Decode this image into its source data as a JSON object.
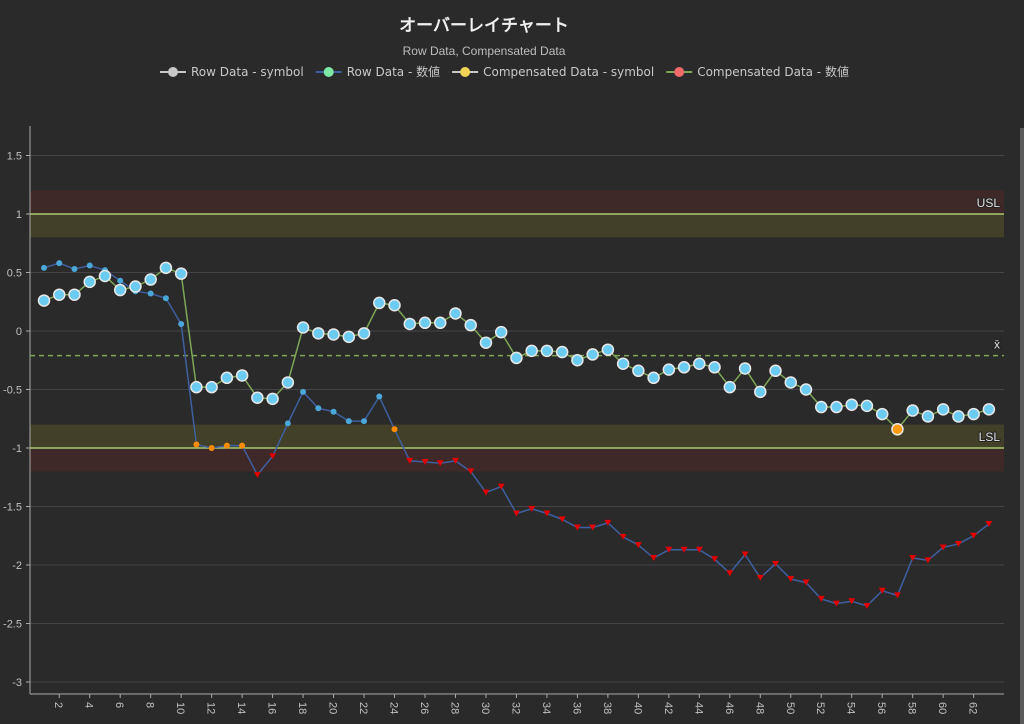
{
  "chart_data": {
    "type": "line",
    "title": "オーバーレイチャート",
    "subtitle": "Row Data, Compensated Data",
    "legend": [
      {
        "label": "Row Data - symbol",
        "color": "#c8c8c8"
      },
      {
        "label": "Row Data - 数値",
        "color": "#7ee8a8",
        "line_color": "#3f5fa0"
      },
      {
        "label": "Compensated Data - symbol",
        "color": "#f2d155"
      },
      {
        "label": "Compensated Data - 数値",
        "color": "#f06a6a",
        "line_color": "#7ea656"
      }
    ],
    "legend_placement": "top",
    "grid": true,
    "xlim": [
      1,
      63
    ],
    "ylim": [
      -3.1,
      1.75
    ],
    "x_ticks": [
      2,
      4,
      6,
      8,
      10,
      12,
      14,
      16,
      18,
      20,
      22,
      24,
      26,
      28,
      30,
      32,
      34,
      36,
      38,
      40,
      42,
      44,
      46,
      48,
      50,
      52,
      54,
      56,
      58,
      60,
      62
    ],
    "y_ticks": [
      1.5,
      1,
      0.5,
      0,
      -0.5,
      -1,
      -1.5,
      -2,
      -2.5,
      -3
    ],
    "limits": {
      "usl": {
        "label": "USL",
        "value": 1
      },
      "lsl": {
        "label": "LSL",
        "value": -1
      },
      "mean": {
        "label": "x̄",
        "value": -0.21
      },
      "warning_band_color": "#424028",
      "alarm_band_color": "#3e2828",
      "limit_line_color": "#a8c870",
      "mean_line_color": "#7ea656"
    },
    "series": [
      {
        "name": "Row Data",
        "line_color": "#3f5fa0",
        "marker_color": "#4aa8d8",
        "warning_color": "#ff8c00",
        "alarm_color": "#e00000",
        "marker": "small-dot",
        "values": [
          0.54,
          0.58,
          0.53,
          0.56,
          0.52,
          0.43,
          0.34,
          0.32,
          0.28,
          0.06,
          -0.97,
          -1.0,
          -0.98,
          -0.98,
          -1.23,
          -1.07,
          -0.79,
          -0.52,
          -0.66,
          -0.69,
          -0.77,
          -0.77,
          -0.56,
          -0.84,
          -1.11,
          -1.12,
          -1.13,
          -1.11,
          -1.2,
          -1.38,
          -1.33,
          -1.56,
          -1.52,
          -1.56,
          -1.61,
          -1.68,
          -1.68,
          -1.64,
          -1.76,
          -1.83,
          -1.94,
          -1.87,
          -1.87,
          -1.87,
          -1.95,
          -2.07,
          -1.91,
          -2.11,
          -1.99,
          -2.12,
          -2.15,
          -2.29,
          -2.33,
          -2.31,
          -2.35,
          -2.22,
          -2.26,
          -1.94,
          -1.96,
          -1.85,
          -1.82,
          -1.75,
          -1.65
        ]
      },
      {
        "name": "Compensated Data",
        "line_color": "#7ea656",
        "marker_color": "#6ccbf0",
        "warning_color": "#ff9a10",
        "marker": "large-circle",
        "values": [
          0.26,
          0.31,
          0.31,
          0.42,
          0.47,
          0.35,
          0.38,
          0.44,
          0.54,
          0.49,
          -0.48,
          -0.48,
          -0.4,
          -0.38,
          -0.57,
          -0.58,
          -0.44,
          0.03,
          -0.02,
          -0.03,
          -0.05,
          -0.02,
          0.24,
          0.22,
          0.06,
          0.07,
          0.07,
          0.15,
          0.05,
          -0.1,
          -0.01,
          -0.23,
          -0.17,
          -0.17,
          -0.18,
          -0.25,
          -0.2,
          -0.16,
          -0.28,
          -0.34,
          -0.4,
          -0.33,
          -0.31,
          -0.28,
          -0.31,
          -0.48,
          -0.32,
          -0.52,
          -0.34,
          -0.44,
          -0.5,
          -0.65,
          -0.65,
          -0.63,
          -0.64,
          -0.71,
          -0.84,
          -0.68,
          -0.73,
          -0.67,
          -0.73,
          -0.71,
          -0.67
        ],
        "warning_points": [
          56
        ]
      }
    ]
  }
}
